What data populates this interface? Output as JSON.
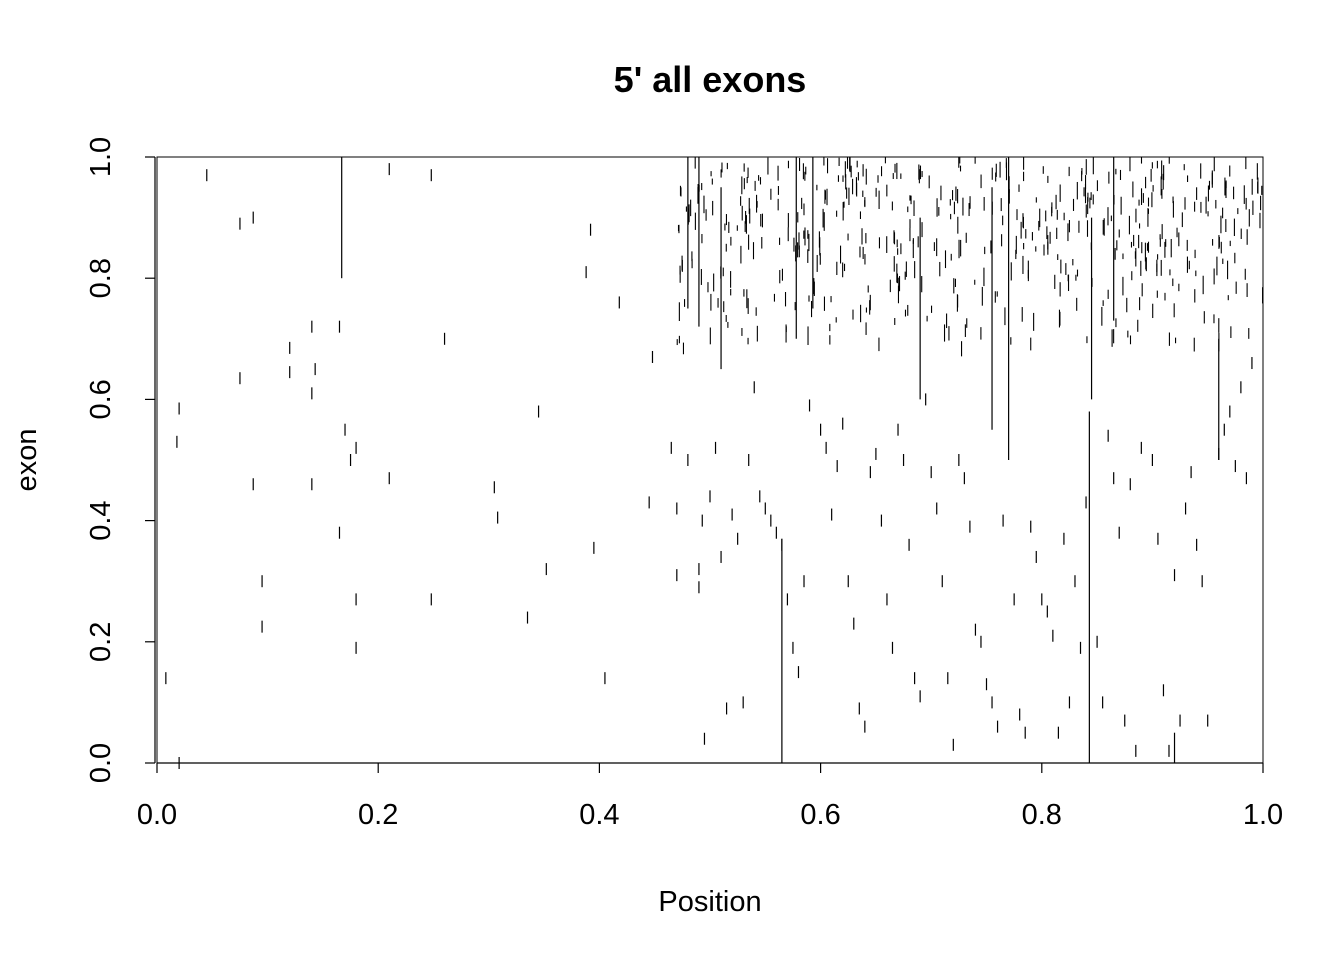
{
  "chart_data": {
    "type": "scatter",
    "marker": "vertical-tick",
    "title": "5' all exons",
    "xlabel": "Position",
    "ylabel": "exon",
    "xlim": [
      0.0,
      1.0
    ],
    "ylim": [
      0.0,
      1.0
    ],
    "x_ticks": [
      "0.0",
      "0.2",
      "0.4",
      "0.6",
      "0.8",
      "1.0"
    ],
    "y_ticks": [
      "0.0",
      "0.2",
      "0.4",
      "0.6",
      "0.8",
      "1.0"
    ],
    "grid": false,
    "legend": "none",
    "colors": {
      "marks": "#000000",
      "background": "#ffffff"
    },
    "sparse_points": [
      [
        0.008,
        0.14
      ],
      [
        0.018,
        0.53
      ],
      [
        0.02,
        0.585
      ],
      [
        0.02,
        0.0
      ],
      [
        0.045,
        0.97
      ],
      [
        0.075,
        0.89
      ],
      [
        0.075,
        0.635
      ],
      [
        0.087,
        0.9
      ],
      [
        0.087,
        0.46
      ],
      [
        0.095,
        0.3
      ],
      [
        0.095,
        0.225
      ],
      [
        0.12,
        0.685
      ],
      [
        0.12,
        0.645
      ],
      [
        0.14,
        0.72
      ],
      [
        0.143,
        0.65
      ],
      [
        0.14,
        0.61
      ],
      [
        0.14,
        0.46
      ],
      [
        0.165,
        0.72
      ],
      [
        0.165,
        0.38
      ],
      [
        0.17,
        0.55
      ],
      [
        0.175,
        0.5
      ],
      [
        0.18,
        0.52
      ],
      [
        0.18,
        0.27
      ],
      [
        0.18,
        0.19
      ],
      [
        0.21,
        0.98
      ],
      [
        0.21,
        0.47
      ],
      [
        0.248,
        0.97
      ],
      [
        0.248,
        0.27
      ],
      [
        0.26,
        0.7
      ],
      [
        0.305,
        0.455
      ],
      [
        0.308,
        0.405
      ],
      [
        0.335,
        0.24
      ],
      [
        0.345,
        0.58
      ],
      [
        0.352,
        0.32
      ],
      [
        0.388,
        0.81
      ],
      [
        0.392,
        0.88
      ],
      [
        0.395,
        0.355
      ],
      [
        0.405,
        0.14
      ],
      [
        0.418,
        0.76
      ],
      [
        0.445,
        0.43
      ],
      [
        0.448,
        0.67
      ],
      [
        0.465,
        0.52
      ],
      [
        0.47,
        0.42
      ],
      [
        0.47,
        0.31
      ],
      [
        0.48,
        0.5
      ],
      [
        0.49,
        0.32
      ],
      [
        0.49,
        0.29
      ],
      [
        0.493,
        0.4
      ],
      [
        0.495,
        0.04
      ],
      [
        0.5,
        0.44
      ],
      [
        0.505,
        0.52
      ],
      [
        0.51,
        0.34
      ],
      [
        0.515,
        0.09
      ],
      [
        0.52,
        0.41
      ],
      [
        0.525,
        0.37
      ],
      [
        0.53,
        0.1
      ],
      [
        0.535,
        0.5
      ],
      [
        0.54,
        0.62
      ],
      [
        0.545,
        0.44
      ],
      [
        0.55,
        0.42
      ],
      [
        0.555,
        0.4
      ],
      [
        0.56,
        0.38
      ],
      [
        0.565,
        0.36
      ],
      [
        0.57,
        0.27
      ],
      [
        0.575,
        0.19
      ],
      [
        0.58,
        0.15
      ],
      [
        0.585,
        0.3
      ],
      [
        0.59,
        0.59
      ],
      [
        0.6,
        0.55
      ],
      [
        0.605,
        0.52
      ],
      [
        0.61,
        0.41
      ],
      [
        0.615,
        0.49
      ],
      [
        0.62,
        0.56
      ],
      [
        0.625,
        0.3
      ],
      [
        0.63,
        0.23
      ],
      [
        0.635,
        0.09
      ],
      [
        0.64,
        0.06
      ],
      [
        0.645,
        0.48
      ],
      [
        0.65,
        0.51
      ],
      [
        0.655,
        0.4
      ],
      [
        0.66,
        0.27
      ],
      [
        0.665,
        0.19
      ],
      [
        0.67,
        0.55
      ],
      [
        0.675,
        0.5
      ],
      [
        0.68,
        0.36
      ],
      [
        0.685,
        0.14
      ],
      [
        0.69,
        0.11
      ],
      [
        0.695,
        0.6
      ],
      [
        0.7,
        0.48
      ],
      [
        0.705,
        0.42
      ],
      [
        0.71,
        0.3
      ],
      [
        0.715,
        0.14
      ],
      [
        0.72,
        0.03
      ],
      [
        0.725,
        0.5
      ],
      [
        0.73,
        0.47
      ],
      [
        0.735,
        0.39
      ],
      [
        0.74,
        0.22
      ],
      [
        0.745,
        0.2
      ],
      [
        0.75,
        0.13
      ],
      [
        0.755,
        0.1
      ],
      [
        0.76,
        0.06
      ],
      [
        0.765,
        0.4
      ],
      [
        0.775,
        0.27
      ],
      [
        0.78,
        0.08
      ],
      [
        0.785,
        0.05
      ],
      [
        0.79,
        0.39
      ],
      [
        0.795,
        0.34
      ],
      [
        0.8,
        0.27
      ],
      [
        0.805,
        0.25
      ],
      [
        0.81,
        0.21
      ],
      [
        0.815,
        0.05
      ],
      [
        0.82,
        0.37
      ],
      [
        0.825,
        0.1
      ],
      [
        0.83,
        0.3
      ],
      [
        0.835,
        0.19
      ],
      [
        0.84,
        0.43
      ],
      [
        0.85,
        0.2
      ],
      [
        0.855,
        0.1
      ],
      [
        0.86,
        0.54
      ],
      [
        0.865,
        0.47
      ],
      [
        0.87,
        0.38
      ],
      [
        0.875,
        0.07
      ],
      [
        0.88,
        0.46
      ],
      [
        0.885,
        0.02
      ],
      [
        0.89,
        0.52
      ],
      [
        0.9,
        0.5
      ],
      [
        0.905,
        0.37
      ],
      [
        0.91,
        0.12
      ],
      [
        0.915,
        0.02
      ],
      [
        0.92,
        0.31
      ],
      [
        0.925,
        0.07
      ],
      [
        0.93,
        0.42
      ],
      [
        0.935,
        0.48
      ],
      [
        0.94,
        0.36
      ],
      [
        0.945,
        0.3
      ],
      [
        0.95,
        0.07
      ],
      [
        0.96,
        0.51
      ],
      [
        0.965,
        0.55
      ],
      [
        0.97,
        0.58
      ],
      [
        0.975,
        0.49
      ],
      [
        0.98,
        0.62
      ],
      [
        0.985,
        0.47
      ],
      [
        0.99,
        0.66
      ]
    ],
    "long_ticks": [
      [
        0.167,
        0.8,
        1.0
      ],
      [
        0.565,
        0.0,
        0.37
      ],
      [
        0.578,
        0.7,
        1.0
      ],
      [
        0.77,
        0.5,
        1.0
      ],
      [
        0.843,
        0.0,
        0.58
      ],
      [
        0.92,
        0.0,
        0.05
      ],
      [
        0.593,
        0.75,
        1.0
      ],
      [
        0.48,
        0.75,
        1.0
      ],
      [
        0.69,
        0.6,
        0.9
      ],
      [
        0.96,
        0.5,
        0.7
      ],
      [
        0.49,
        0.72,
        1.0
      ],
      [
        0.755,
        0.55,
        0.95
      ],
      [
        0.865,
        0.73,
        1.0
      ],
      [
        0.51,
        0.65,
        0.95
      ],
      [
        0.845,
        0.6,
        0.9
      ]
    ]
  }
}
